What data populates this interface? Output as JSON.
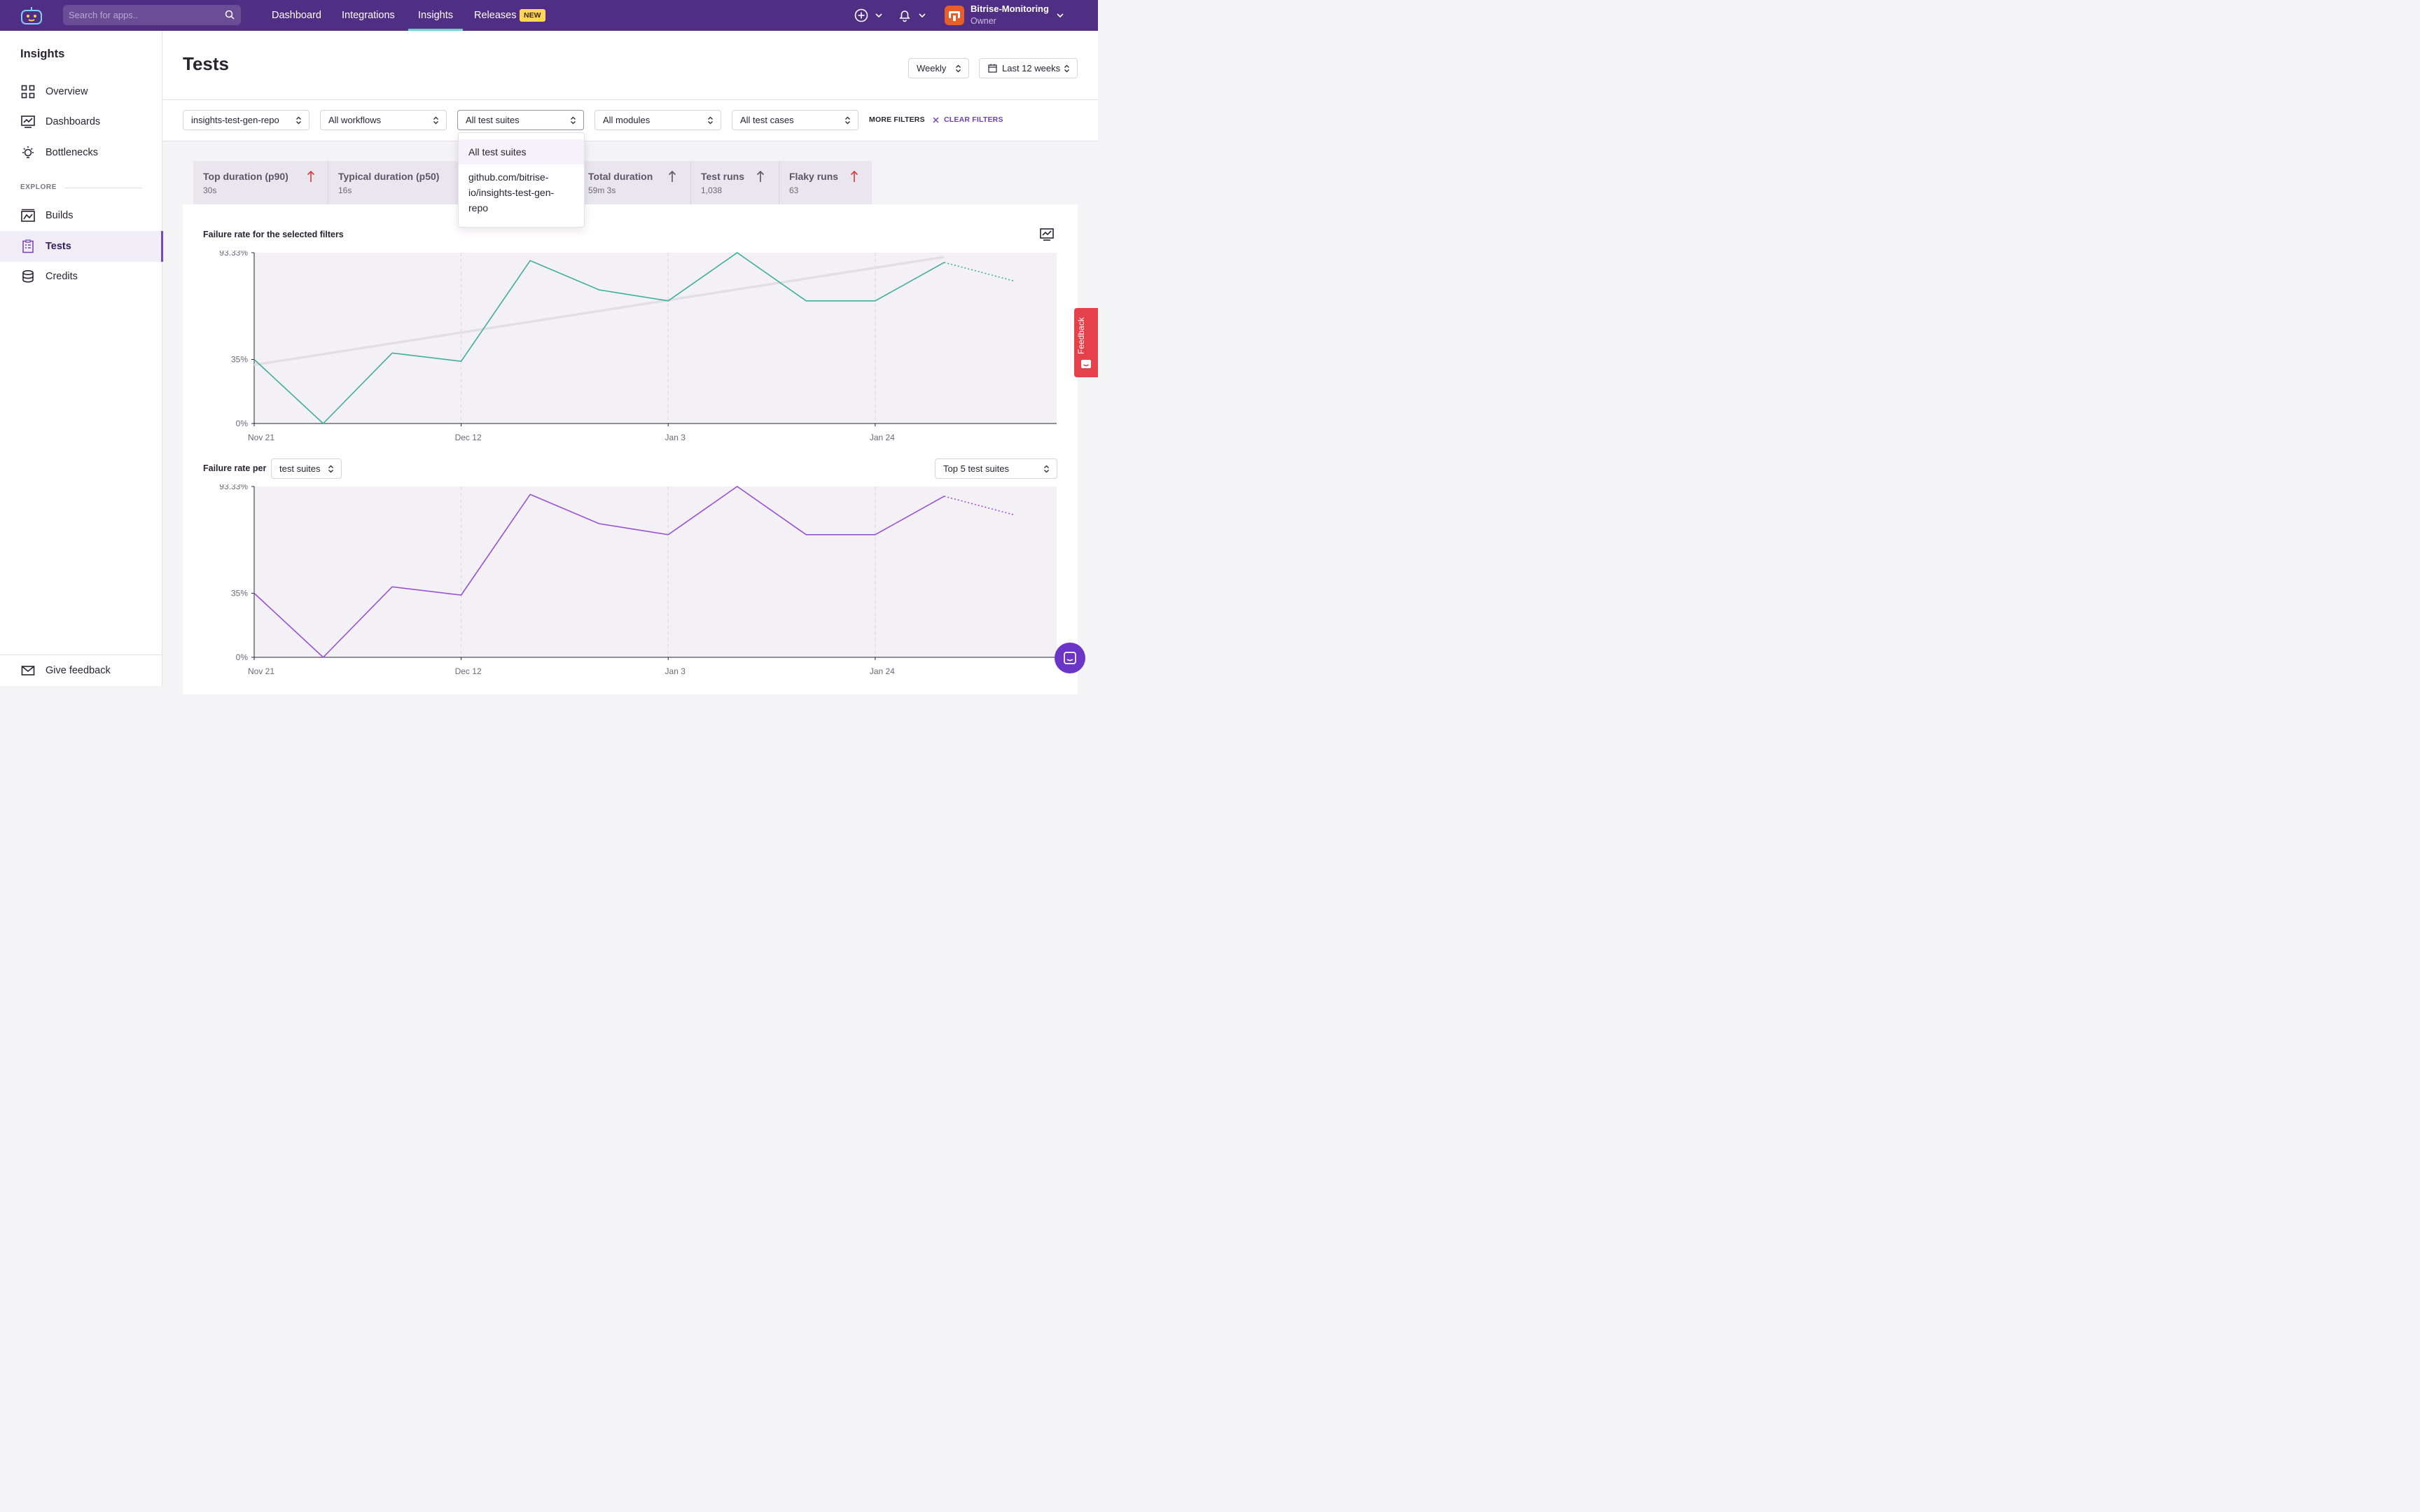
{
  "topbar": {
    "search_placeholder": "Search for apps..",
    "nav": [
      "Dashboard",
      "Integrations",
      "Insights",
      "Releases"
    ],
    "new_badge": "NEW",
    "account_name": "Bitrise-Monitoring",
    "account_role": "Owner"
  },
  "sidebar": {
    "title": "Insights",
    "items": [
      "Overview",
      "Dashboards",
      "Bottlenecks"
    ],
    "explore_label": "EXPLORE",
    "explore_items": [
      "Builds",
      "Tests",
      "Credits"
    ],
    "feedback": "Give feedback"
  },
  "page": {
    "title": "Tests",
    "interval": "Weekly",
    "range": "Last 12 weeks"
  },
  "filters": {
    "repo": "insights-test-gen-repo",
    "workflows": "All workflows",
    "suites": "All test suites",
    "modules": "All modules",
    "cases": "All test cases",
    "more": "MORE FILTERS",
    "clear": "CLEAR FILTERS"
  },
  "dropdown": {
    "options": [
      "All test suites",
      "github.com/bitrise-io/insights-test-gen-repo"
    ],
    "option2_lines": [
      "github.com/bitrise-",
      "io/insights-test-gen-",
      "repo"
    ]
  },
  "stats": [
    {
      "label": "Top duration (p90)",
      "value": "30s"
    },
    {
      "label": "Typical duration (p50)",
      "value": "16s"
    },
    {
      "label": "Total duration",
      "value": "59m 3s"
    },
    {
      "label": "Test runs",
      "value": "1,038"
    },
    {
      "label": "Flaky runs",
      "value": "63"
    }
  ],
  "chart1": {
    "title": "Failure rate for the selected filters"
  },
  "chart2": {
    "title": "Failure rate per",
    "group": "test suites",
    "top": "Top 5 test suites"
  },
  "feedback_tab": "Feedback",
  "colors": {
    "brand": "#4f2e84",
    "series1": "#3fae9a",
    "series2": "#9b4fd6",
    "up_red": "#d93a3a"
  },
  "chart_data": [
    {
      "type": "line",
      "title": "Failure rate for the selected filters",
      "x_tick_labels": [
        "Nov 21",
        "Dec 12",
        "Jan 3",
        "Jan 24"
      ],
      "y_tick_labels": [
        "0%",
        "35%",
        "93.33%"
      ],
      "ylim": [
        0,
        93.33
      ],
      "series": [
        {
          "values": [
            35,
            0,
            38.5,
            34,
            89,
            73,
            67,
            93.33,
            67,
            67,
            88,
            78
          ]
        }
      ],
      "trend": [
        32,
        91
      ],
      "grid": true
    },
    {
      "type": "line",
      "title": "Failure rate per test suites",
      "x_tick_labels": [
        "Nov 21",
        "Dec 12",
        "Jan 3",
        "Jan 24"
      ],
      "y_tick_labels": [
        "0%",
        "35%",
        "93.33%"
      ],
      "ylim": [
        0,
        93.33
      ],
      "series": [
        {
          "values": [
            35,
            0,
            38.5,
            34,
            89,
            73,
            67,
            93.33,
            67,
            67,
            88,
            78
          ]
        }
      ],
      "grid": true
    }
  ]
}
